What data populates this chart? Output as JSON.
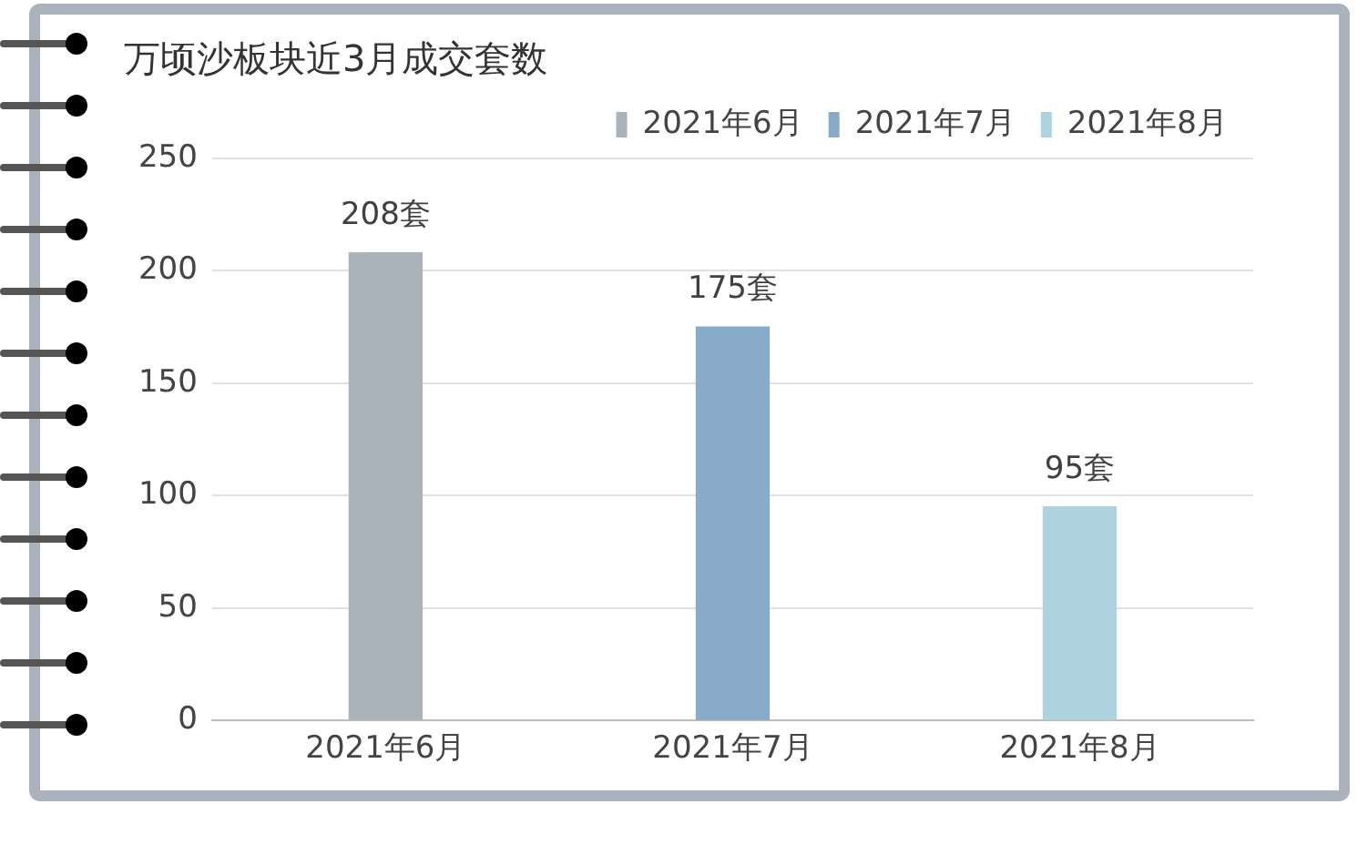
{
  "chart_data": {
    "type": "bar",
    "title": "万顷沙板块近3月成交套数",
    "categories": [
      "2021年6月",
      "2021年7月",
      "2021年8月"
    ],
    "series": [
      {
        "name": "2021年6月",
        "color": "#aab2bb",
        "values": [
          208,
          null,
          null
        ],
        "value_labels": [
          "208套",
          null,
          null
        ]
      },
      {
        "name": "2021年7月",
        "color": "#87abc9",
        "values": [
          null,
          175,
          null
        ],
        "value_labels": [
          null,
          "175套",
          null
        ]
      },
      {
        "name": "2021年8月",
        "color": "#acd3df",
        "values": [
          null,
          null,
          95
        ],
        "value_labels": [
          null,
          null,
          "95套"
        ]
      }
    ],
    "ylim": [
      0,
      250
    ],
    "yticks": [
      0,
      50,
      100,
      150,
      200,
      250
    ],
    "grid": "y",
    "legend": "top right"
  }
}
